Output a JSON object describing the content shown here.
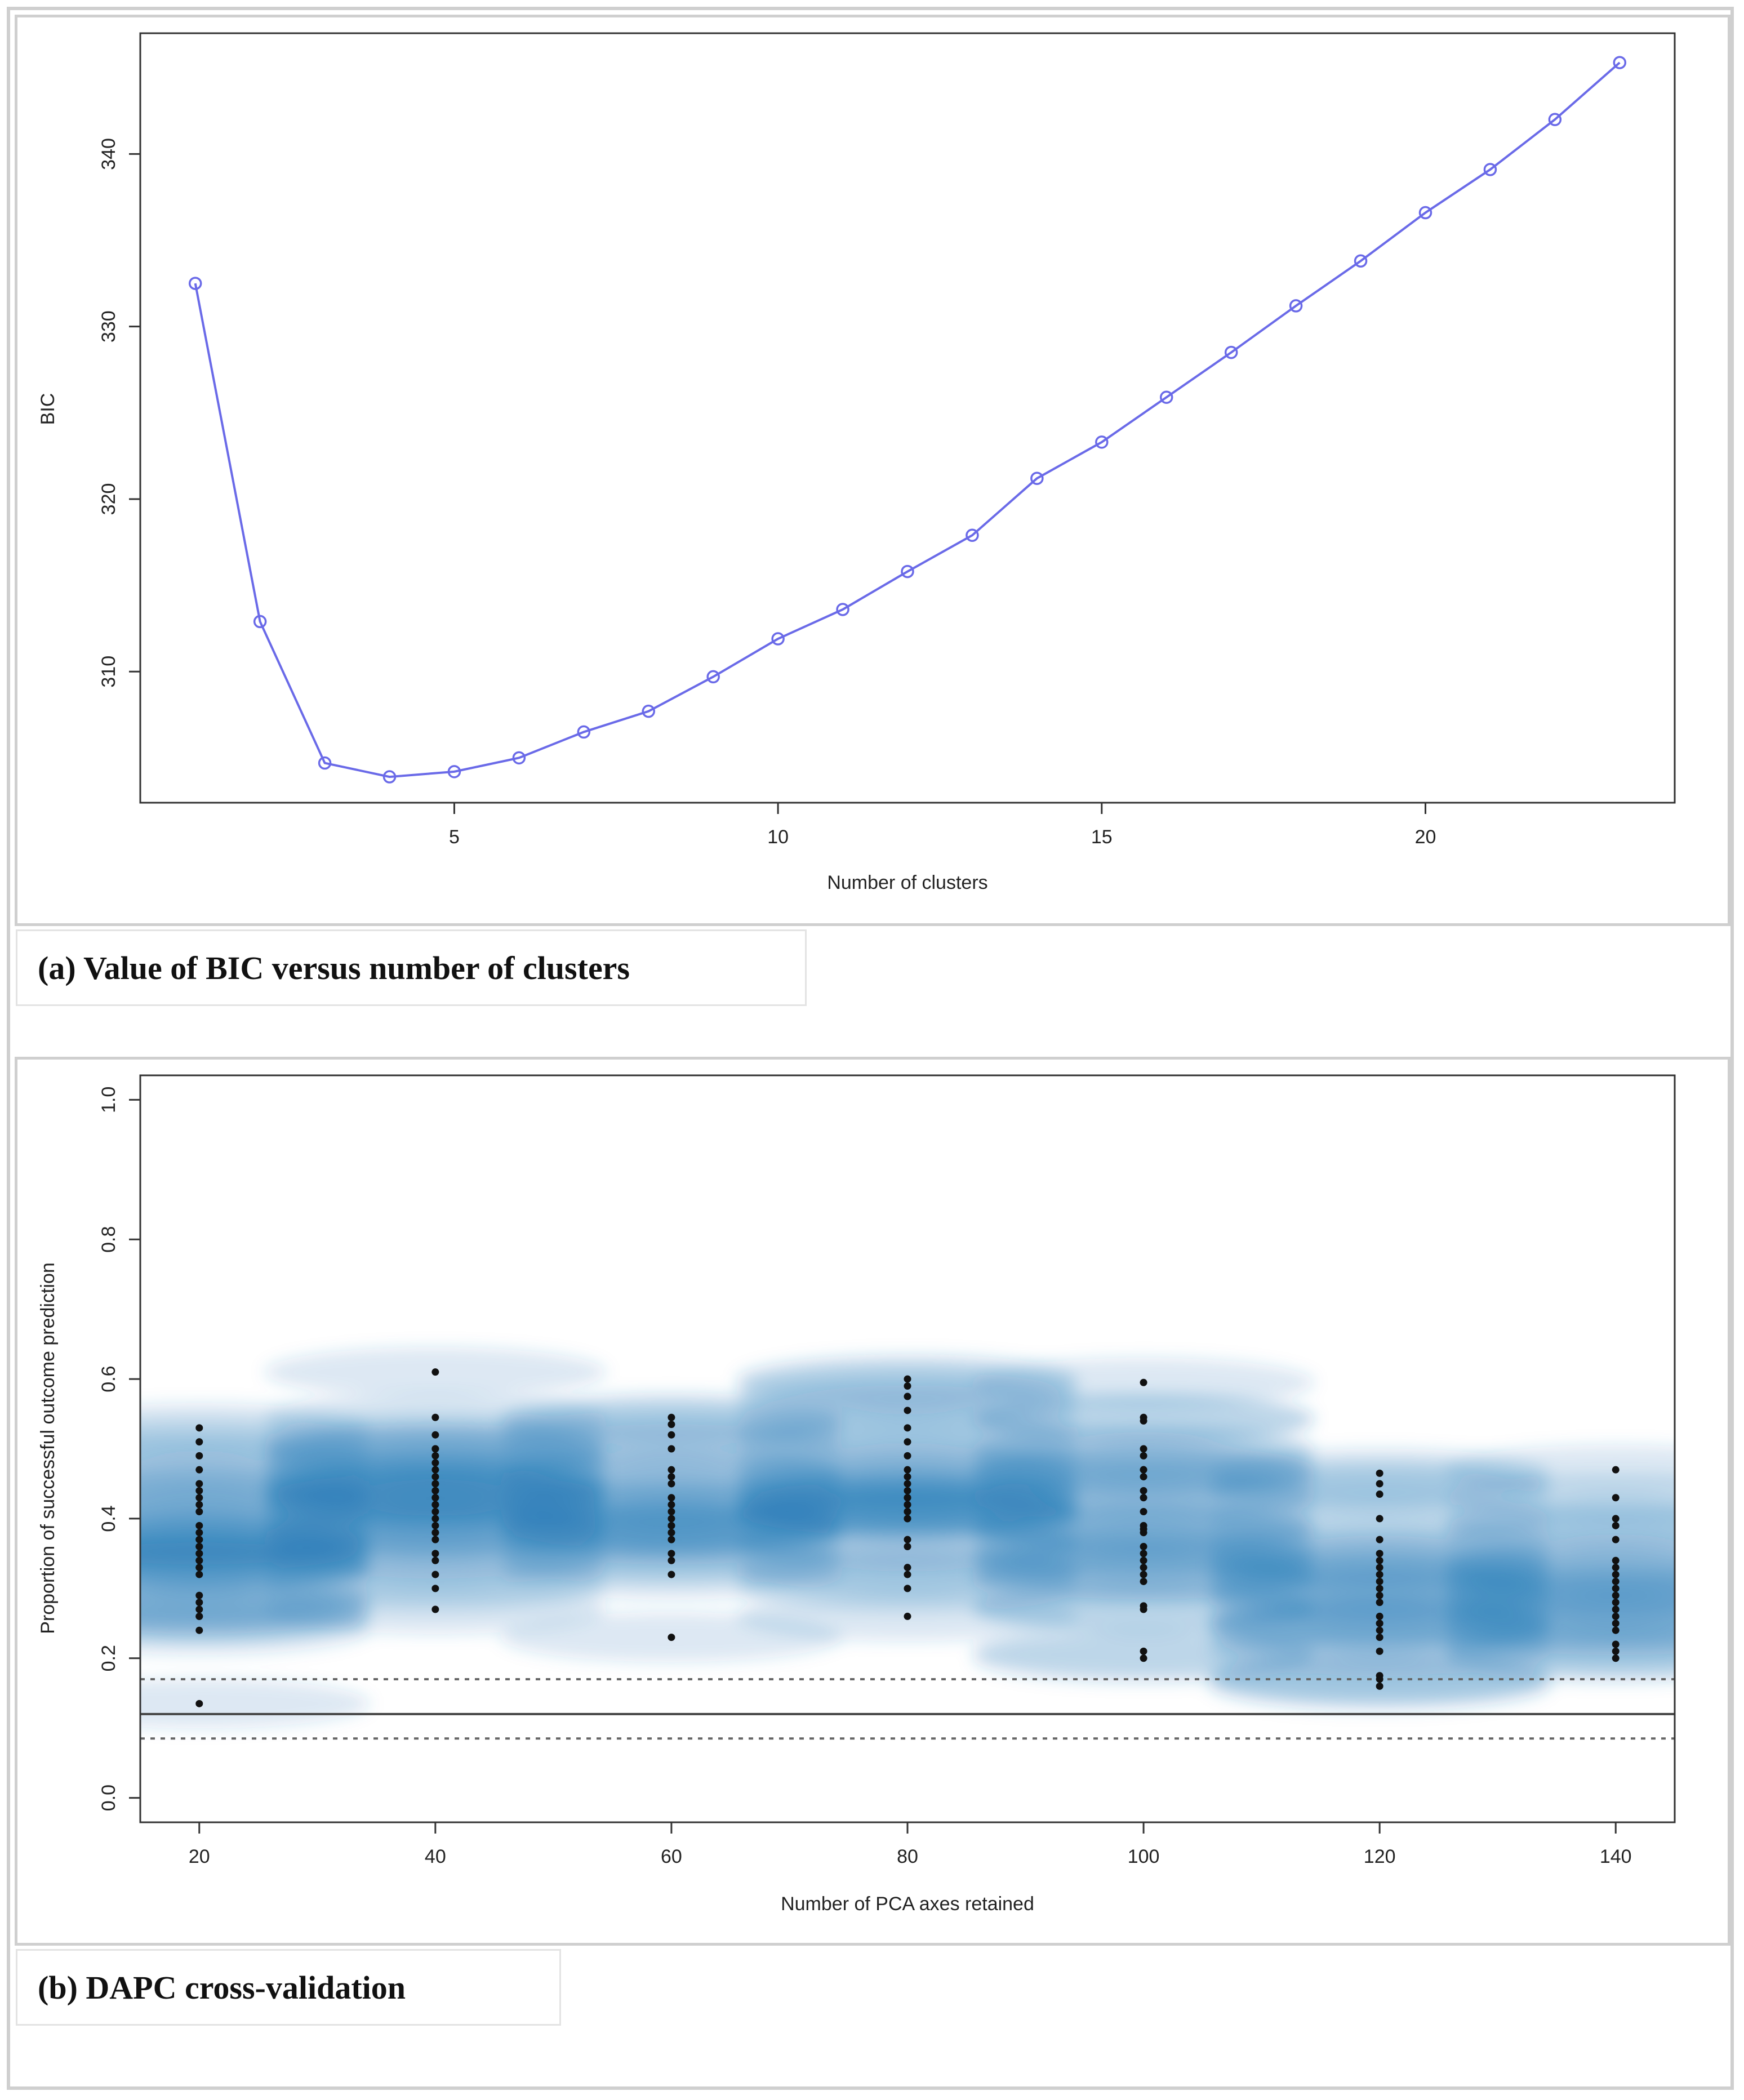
{
  "charts": [
    {
      "caption": "(a) Value of BIC versus number of clusters",
      "chart_data": {
        "type": "line",
        "title": "",
        "xlabel": "Number of clusters",
        "ylabel": "BIC",
        "x": [
          1,
          2,
          3,
          4,
          5,
          6,
          7,
          8,
          9,
          10,
          11,
          12,
          13,
          14,
          15,
          16,
          17,
          18,
          19,
          20,
          21,
          22,
          23
        ],
        "values": [
          332.5,
          312.9,
          304.7,
          303.9,
          304.2,
          305.0,
          306.5,
          307.7,
          309.7,
          311.9,
          313.6,
          315.8,
          317.9,
          321.2,
          323.3,
          325.9,
          328.5,
          331.2,
          333.8,
          336.6,
          339.1,
          342.0,
          345.3
        ],
        "xlim": [
          0.15,
          23.85
        ],
        "ylim": [
          302.4,
          347.0
        ],
        "xticks": [
          5,
          10,
          15,
          20
        ],
        "xtick_labels": [
          "5",
          "10",
          "15",
          "20"
        ],
        "yticks": [
          310,
          320,
          330,
          340
        ],
        "ytick_labels": [
          "310",
          "320",
          "330",
          "340"
        ],
        "line_color": "#6a6ae8",
        "grid": false
      }
    },
    {
      "caption": "(b) DAPC cross-validation",
      "chart_data": {
        "type": "scatter",
        "title": "",
        "xlabel": "Number of PCA axes retained",
        "ylabel": "Proportion of successful outcome prediction",
        "xlim": [
          15,
          145
        ],
        "ylim": [
          -0.035,
          1.035
        ],
        "xticks": [
          20,
          40,
          60,
          80,
          100,
          120,
          140
        ],
        "xtick_labels": [
          "20",
          "40",
          "60",
          "80",
          "100",
          "120",
          "140"
        ],
        "yticks": [
          0.0,
          0.2,
          0.4,
          0.6,
          0.8,
          1.0
        ],
        "ytick_labels": [
          "0.0",
          "0.2",
          "0.4",
          "0.6",
          "0.8",
          "1.0"
        ],
        "density_color": "#1f78b4",
        "point_color": "#111111",
        "grid": false,
        "reference_lines": [
          {
            "name": "mean-line",
            "y": 0.12,
            "style": "solid"
          },
          {
            "name": "upper-quantile-line",
            "y": 0.17,
            "style": "dotted"
          },
          {
            "name": "lower-quantile-line",
            "y": 0.085,
            "style": "dotted"
          }
        ],
        "series": [
          {
            "name": "20",
            "x": 20,
            "values": [
              0.53,
              0.51,
              0.49,
              0.47,
              0.45,
              0.44,
              0.43,
              0.42,
              0.41,
              0.39,
              0.38,
              0.37,
              0.37,
              0.36,
              0.36,
              0.35,
              0.35,
              0.34,
              0.34,
              0.33,
              0.33,
              0.32,
              0.29,
              0.28,
              0.27,
              0.26,
              0.26,
              0.24,
              0.135
            ]
          },
          {
            "name": "40",
            "x": 40,
            "values": [
              0.61,
              0.545,
              0.52,
              0.5,
              0.5,
              0.49,
              0.48,
              0.47,
              0.46,
              0.45,
              0.45,
              0.44,
              0.44,
              0.43,
              0.43,
              0.42,
              0.42,
              0.41,
              0.4,
              0.39,
              0.38,
              0.38,
              0.37,
              0.35,
              0.34,
              0.32,
              0.3,
              0.27
            ]
          },
          {
            "name": "60",
            "x": 60,
            "values": [
              0.545,
              0.535,
              0.52,
              0.5,
              0.47,
              0.46,
              0.45,
              0.43,
              0.42,
              0.41,
              0.4,
              0.39,
              0.39,
              0.38,
              0.38,
              0.37,
              0.35,
              0.34,
              0.32,
              0.23
            ]
          },
          {
            "name": "80",
            "x": 80,
            "values": [
              0.6,
              0.59,
              0.575,
              0.555,
              0.53,
              0.51,
              0.49,
              0.47,
              0.46,
              0.45,
              0.44,
              0.43,
              0.43,
              0.42,
              0.42,
              0.41,
              0.41,
              0.4,
              0.4,
              0.37,
              0.36,
              0.33,
              0.32,
              0.3,
              0.26
            ]
          },
          {
            "name": "100",
            "x": 100,
            "values": [
              0.595,
              0.545,
              0.54,
              0.5,
              0.49,
              0.47,
              0.47,
              0.46,
              0.44,
              0.43,
              0.41,
              0.39,
              0.385,
              0.38,
              0.36,
              0.35,
              0.34,
              0.33,
              0.32,
              0.31,
              0.275,
              0.27,
              0.21,
              0.2
            ]
          },
          {
            "name": "120",
            "x": 120,
            "values": [
              0.465,
              0.45,
              0.435,
              0.4,
              0.37,
              0.35,
              0.34,
              0.33,
              0.32,
              0.31,
              0.3,
              0.29,
              0.28,
              0.26,
              0.25,
              0.25,
              0.24,
              0.23,
              0.21,
              0.175,
              0.17,
              0.16
            ]
          },
          {
            "name": "140",
            "x": 140,
            "values": [
              0.47,
              0.43,
              0.4,
              0.39,
              0.37,
              0.34,
              0.33,
              0.32,
              0.31,
              0.3,
              0.29,
              0.28,
              0.27,
              0.26,
              0.25,
              0.24,
              0.22,
              0.21,
              0.2
            ]
          }
        ]
      }
    }
  ]
}
